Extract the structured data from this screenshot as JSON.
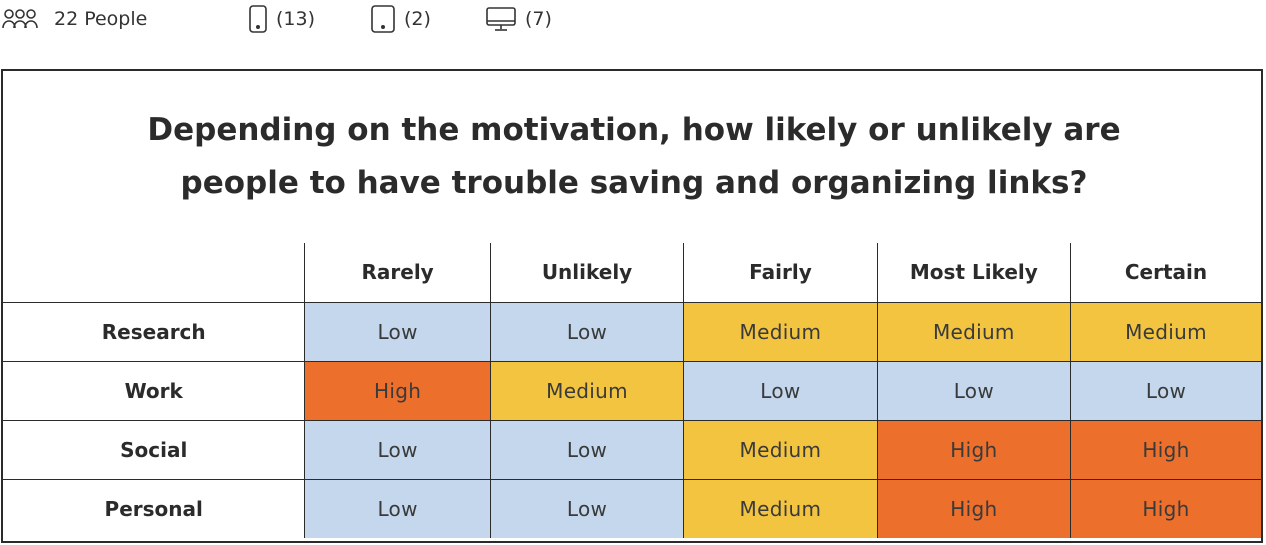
{
  "stats": {
    "people_label": "22 People",
    "phone_count": "(13)",
    "tablet_count": "(2)",
    "desktop_count": "(7)",
    "icons": [
      "people-icon",
      "phone-icon",
      "tablet-icon",
      "desktop-icon"
    ]
  },
  "chart_data": {
    "type": "heatmap",
    "title": "Depending on the motivation, how likely or unlikely are people to have trouble saving and organizing links?",
    "columns": [
      "Rarely",
      "Unlikely",
      "Fairly",
      "Most Likely",
      "Certain"
    ],
    "rows": [
      "Research",
      "Work",
      "Social",
      "Personal"
    ],
    "values": [
      [
        "Low",
        "Low",
        "Medium",
        "Medium",
        "Medium"
      ],
      [
        "High",
        "Medium",
        "Low",
        "Low",
        "Low"
      ],
      [
        "Low",
        "Low",
        "Medium",
        "High",
        "High"
      ],
      [
        "Low",
        "Low",
        "Medium",
        "High",
        "High"
      ]
    ],
    "level_colors": {
      "Low": "#c4d7ec",
      "Medium": "#f2c440",
      "High": "#ed6f2c"
    }
  }
}
